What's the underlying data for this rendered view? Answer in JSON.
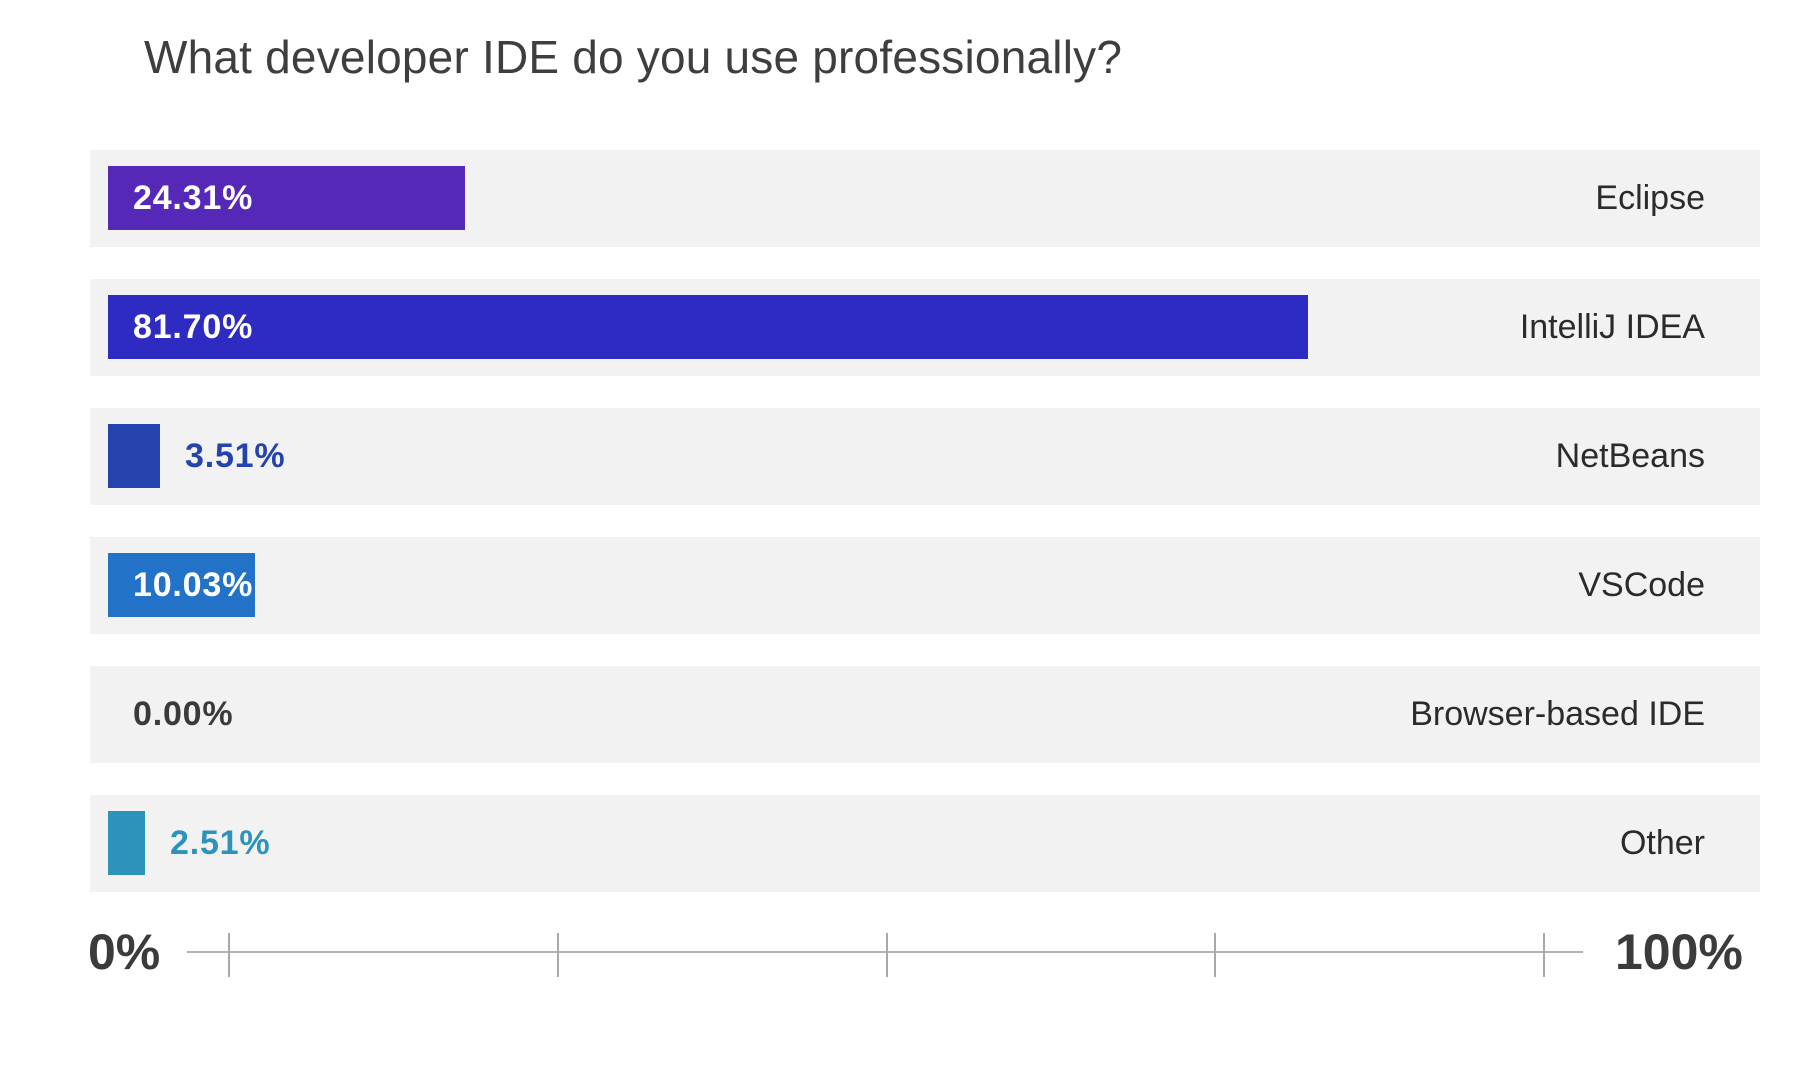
{
  "title": "What developer IDE do you use professionally?",
  "chart_data": {
    "type": "bar",
    "orientation": "horizontal",
    "title": "What developer IDE do you use professionally?",
    "categories": [
      "Eclipse",
      "IntelliJ IDEA",
      "NetBeans",
      "VSCode",
      "Browser-based IDE",
      "Other"
    ],
    "values": [
      24.31,
      81.7,
      3.51,
      10.03,
      0.0,
      2.51
    ],
    "value_labels": [
      "24.31%",
      "81.70%",
      "3.51%",
      "10.03%",
      "0.00%",
      "2.51%"
    ],
    "bar_colors": [
      "#5528b8",
      "#2d2bc2",
      "#2443ad",
      "#2273c8",
      null,
      "#2e93bb"
    ],
    "xlabel": "",
    "ylabel": "",
    "xlim": [
      0,
      100
    ],
    "axis_ticks_percent": [
      0,
      25,
      50,
      75,
      100
    ],
    "axis_min_label": "0%",
    "axis_max_label": "100%",
    "grid": false,
    "legend": false,
    "track_color": "#f2f2f3",
    "zero_value_label_color": "#3a3a3a"
  }
}
